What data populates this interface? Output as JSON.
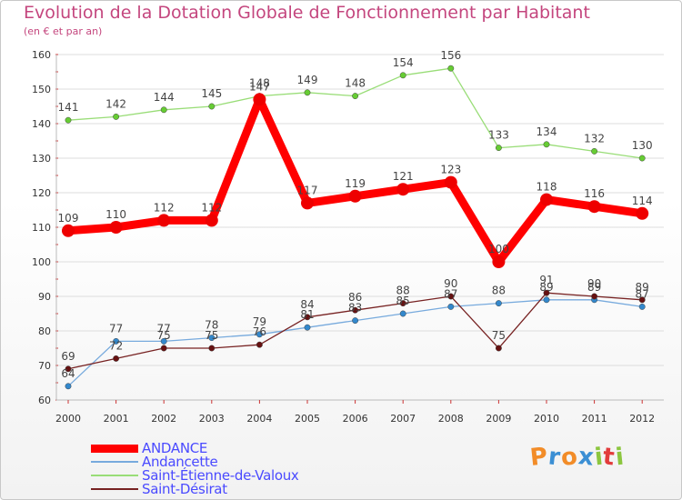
{
  "title": "Evolution de la Dotation Globale de Fonctionnement par Habitant",
  "subtitle": "(en € et par an)",
  "logo": {
    "letters": [
      "P",
      "r",
      "o",
      "x",
      "i",
      "t",
      "i"
    ],
    "colors": [
      "#f28c28",
      "#3b8fd4",
      "#f28c28",
      "#3b8fd4",
      "#8cc63f",
      "#e23c3c",
      "#8cc63f"
    ]
  },
  "chart_data": {
    "type": "line",
    "title": "Evolution de la Dotation Globale de Fonctionnement par Habitant",
    "subtitle": "(en € et par an)",
    "xlabel": "",
    "ylabel": "",
    "ylim": [
      60,
      160
    ],
    "yticks": [
      60,
      70,
      80,
      90,
      100,
      110,
      120,
      130,
      140,
      150,
      160
    ],
    "grid": "horizontal",
    "legend_position": "bottom-left",
    "categories": [
      "2000",
      "2001",
      "2002",
      "2003",
      "2004",
      "2005",
      "2006",
      "2007",
      "2008",
      "2009",
      "2010",
      "2011",
      "2012"
    ],
    "series": [
      {
        "name": "Saint-Étienne-de-Valoux",
        "color": "#99dd77",
        "marker_color": "#66cc33",
        "values": [
          141,
          142,
          144,
          145,
          148,
          149,
          148,
          154,
          156,
          133,
          134,
          132,
          130
        ]
      },
      {
        "name": "Andancette",
        "color": "#77aadd",
        "marker_color": "#3388cc",
        "values": [
          64,
          77,
          77,
          78,
          79,
          81,
          83,
          85,
          87,
          88,
          89,
          89,
          87
        ]
      },
      {
        "name": "Saint-Désirat",
        "color": "#772222",
        "marker_color": "#661111",
        "values": [
          69,
          72,
          75,
          75,
          76,
          84,
          86,
          88,
          90,
          75,
          91,
          90,
          89
        ]
      },
      {
        "name": "ANDANCE",
        "color": "#ff0000",
        "marker_color": "#ee0000",
        "values": [
          109,
          110,
          112,
          112,
          147,
          117,
          119,
          121,
          123,
          100,
          118,
          116,
          114
        ]
      }
    ],
    "legend_order": [
      "ANDANCE",
      "Andancette",
      "Saint-Étienne-de-Valoux",
      "Saint-Désirat"
    ]
  }
}
